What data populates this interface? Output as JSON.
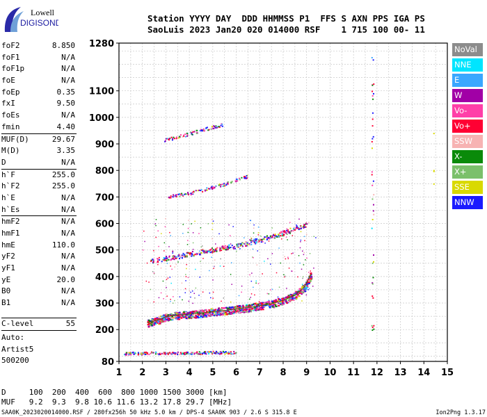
{
  "logo": {
    "top": "Lowell",
    "bottom": "DIGISONDE"
  },
  "header": {
    "line1": "Station YYYY DAY  DDD HHMMSS P1  FFS S AXN PPS IGA PS",
    "line2": "SaoLuis 2023 Jan20 020 014000 RSF    1 715 100 00- 11"
  },
  "parameters": [
    {
      "name": "foF2",
      "value": "8.850"
    },
    {
      "name": "foF1",
      "value": "N/A"
    },
    {
      "name": "foF1p",
      "value": "N/A"
    },
    {
      "name": "foE",
      "value": "N/A"
    },
    {
      "name": "foEp",
      "value": "0.35"
    },
    {
      "name": "fxI",
      "value": "9.50"
    },
    {
      "name": "foEs",
      "value": "N/A"
    },
    {
      "name": "fmin",
      "value": "4.40",
      "sep": true
    },
    {
      "name": "MUF(D)",
      "value": "29.67"
    },
    {
      "name": "M(D)",
      "value": "3.35"
    },
    {
      "name": "D",
      "value": "N/A",
      "sep": true
    },
    {
      "name": "h`F",
      "value": "255.0"
    },
    {
      "name": "h`F2",
      "value": "255.0"
    },
    {
      "name": "h`E",
      "value": "N/A"
    },
    {
      "name": "h`Es",
      "value": "N/A",
      "sep": true
    },
    {
      "name": "hmF2",
      "value": "N/A"
    },
    {
      "name": "hmF1",
      "value": "N/A"
    },
    {
      "name": "hmE",
      "value": "110.0"
    },
    {
      "name": "yF2",
      "value": "N/A"
    },
    {
      "name": "yF1",
      "value": "N/A"
    },
    {
      "name": "yE",
      "value": "20.0"
    },
    {
      "name": "B0",
      "value": "N/A"
    },
    {
      "name": "B1",
      "value": "N/A"
    }
  ],
  "clevel": {
    "name": "C-level",
    "value": "55"
  },
  "auto": [
    "Auto:",
    "Artist5",
    "500200"
  ],
  "legend": [
    {
      "label": "NoVal",
      "color": "#8c8c8c"
    },
    {
      "label": "NNE",
      "color": "#00e5ff"
    },
    {
      "label": "E",
      "color": "#3aa7ff"
    },
    {
      "label": "W",
      "color": "#a100a6"
    },
    {
      "label": "Vo-",
      "color": "#ff3fa8"
    },
    {
      "label": "Vo+",
      "color": "#ff0033"
    },
    {
      "label": "SSW",
      "color": "#f7b3b3"
    },
    {
      "label": "X-",
      "color": "#0a8a0a"
    },
    {
      "label": "X+",
      "color": "#7bc06b"
    },
    {
      "label": "SSE",
      "color": "#d9d900"
    },
    {
      "label": "NNW",
      "color": "#1a1aff"
    }
  ],
  "muf_table": {
    "line1": "D     100  200  400  600  800 1000 1500 3000 [km]",
    "line2": "MUF   9.2  9.3  9.8 10.6 11.6 13.2 17.8 29.7 [MHz]"
  },
  "footer": {
    "left": "SAA0K_2023020014000.RSF / 280fx256h 50 kHz 5.0 km / DPS-4 SAA0K 903 / 2.6 S 315.8 E",
    "right": "Ion2Png 1.3.17"
  },
  "chart_data": {
    "type": "scatter",
    "title": "",
    "xlabel": "",
    "ylabel": "",
    "xlim": [
      1,
      15
    ],
    "ylim": [
      80,
      1280
    ],
    "x_ticks": [
      1,
      2,
      3,
      4,
      5,
      6,
      7,
      8,
      9,
      10,
      11,
      12,
      13,
      14,
      15
    ],
    "y_ticks": [
      80,
      200,
      300,
      400,
      500,
      600,
      700,
      800,
      900,
      1000,
      1100,
      1280
    ],
    "grid": true,
    "series": [
      {
        "name": "F trace",
        "x": [
          2.2,
          2.6,
          3.0,
          3.5,
          4.0,
          4.5,
          5.0,
          5.5,
          6.0,
          6.5,
          7.0,
          7.5,
          8.0,
          8.5,
          8.9,
          9.2
        ],
        "y": [
          225,
          235,
          248,
          255,
          258,
          262,
          268,
          272,
          278,
          283,
          290,
          298,
          310,
          330,
          360,
          410
        ]
      },
      {
        "name": "2F trace",
        "x": [
          2.3,
          3.0,
          3.5,
          4.0,
          4.5,
          5.0,
          5.5,
          6.0,
          6.5,
          7.0,
          7.5,
          8.0,
          8.5,
          9.0
        ],
        "y": [
          460,
          470,
          478,
          486,
          494,
          502,
          510,
          518,
          528,
          540,
          552,
          566,
          582,
          600
        ]
      },
      {
        "name": "3F trace",
        "x": [
          3.0,
          3.5,
          4.0,
          4.5,
          5.0,
          5.5,
          6.0,
          6.5
        ],
        "y": [
          700,
          708,
          716,
          726,
          738,
          750,
          765,
          780
        ]
      },
      {
        "name": "4F trace",
        "x": [
          2.9,
          3.5,
          4.0,
          4.5,
          5.0,
          5.4
        ],
        "y": [
          915,
          928,
          940,
          953,
          965,
          975
        ]
      },
      {
        "name": "E trace",
        "x": [
          1.2,
          1.5,
          2.0,
          2.5,
          3.0,
          3.5,
          4.0,
          4.5,
          5.0,
          5.5,
          6.0
        ],
        "y": [
          110,
          112,
          112,
          113,
          113,
          113,
          113,
          114,
          115,
          115,
          115
        ]
      }
    ]
  }
}
